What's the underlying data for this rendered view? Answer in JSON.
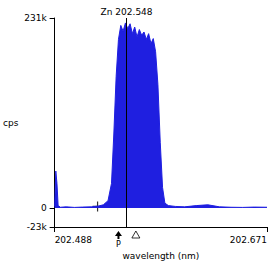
{
  "chart_data": {
    "type": "area",
    "x_label": "wavelength (nm)",
    "y_label": "cps",
    "color": "#1f1fe0",
    "grid": false,
    "x": [
      202.488,
      202.489,
      202.49,
      202.491,
      202.493,
      202.498,
      202.505,
      202.512,
      202.52,
      202.526,
      202.53,
      202.534,
      202.537,
      202.539,
      202.541,
      202.543,
      202.545,
      202.547,
      202.549,
      202.551,
      202.553,
      202.555,
      202.557,
      202.559,
      202.561,
      202.563,
      202.565,
      202.567,
      202.569,
      202.571,
      202.573,
      202.575,
      202.577,
      202.579,
      202.581,
      202.583,
      202.586,
      202.592,
      202.6,
      202.61,
      202.62,
      202.63,
      202.64,
      202.65,
      202.66,
      202.671
    ],
    "values": [
      2000,
      45000,
      30000,
      3000,
      1000,
      1500,
      800,
      1200,
      1500,
      2500,
      4000,
      9000,
      30000,
      90000,
      160000,
      205000,
      222000,
      215000,
      225000,
      218000,
      224000,
      212000,
      220000,
      208000,
      217000,
      210000,
      214000,
      205000,
      212000,
      200000,
      206000,
      190000,
      150000,
      80000,
      25000,
      6000,
      3000,
      2000,
      1500,
      3000,
      4000,
      1500,
      1000,
      800,
      1200,
      1000
    ],
    "xlim": [
      202.488,
      202.671
    ],
    "xticks": [
      202.488,
      202.671
    ],
    "ylim": [
      -23000,
      231000
    ],
    "yticks": [
      {
        "value": -23000,
        "label": "-23k"
      },
      0,
      {
        "value": 231000,
        "label": "231k"
      }
    ],
    "annotations": [
      {
        "type": "vline",
        "x": 202.548,
        "label": "Zn 202.548"
      }
    ],
    "background_points": {
      "x": [
        202.525,
        202.568
      ],
      "values": [
        2000,
        7000
      ],
      "marker": "cross"
    },
    "position_markers": [
      {
        "x": 202.543,
        "marker": "arrow",
        "label": "P"
      },
      {
        "x": 202.558,
        "marker": "triangle"
      }
    ]
  }
}
